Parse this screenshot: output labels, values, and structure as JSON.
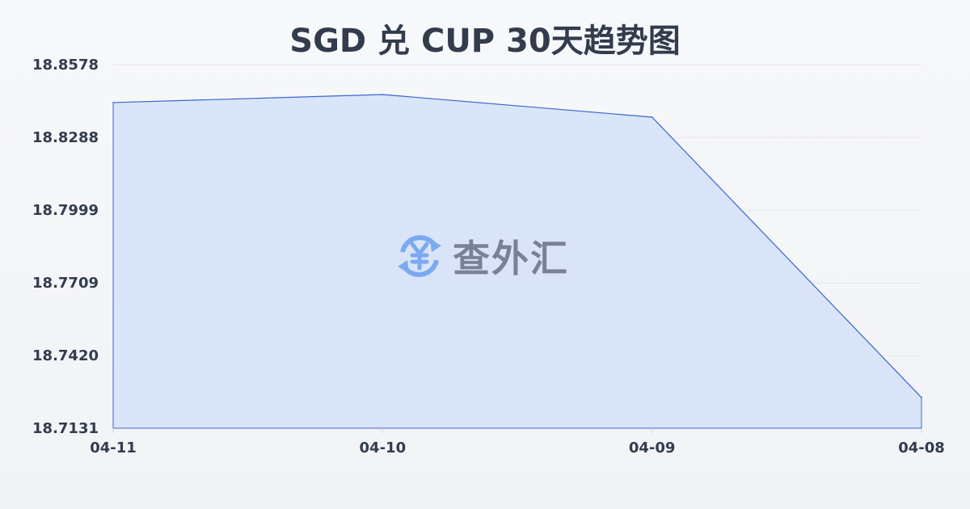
{
  "title": "SGD 兑 CUP 30天趋势图",
  "watermark": {
    "text": "查外汇",
    "icon": "yen-exchange-icon",
    "icon_color": "#7aaaf0"
  },
  "chart_data": {
    "type": "area",
    "title": "SGD 兑 CUP 30天趋势图",
    "categories": [
      "04-11",
      "04-10",
      "04-09",
      "04-08"
    ],
    "values": [
      18.8427,
      18.8459,
      18.8369,
      18.7253
    ],
    "ylim": [
      18.7131,
      18.8578
    ],
    "yticks": [
      "18.8578",
      "18.8288",
      "18.7999",
      "18.7709",
      "18.7420",
      "18.7131"
    ],
    "grid": true,
    "line_color": "#3a66d0",
    "fill_color": "#d6e2f7"
  }
}
